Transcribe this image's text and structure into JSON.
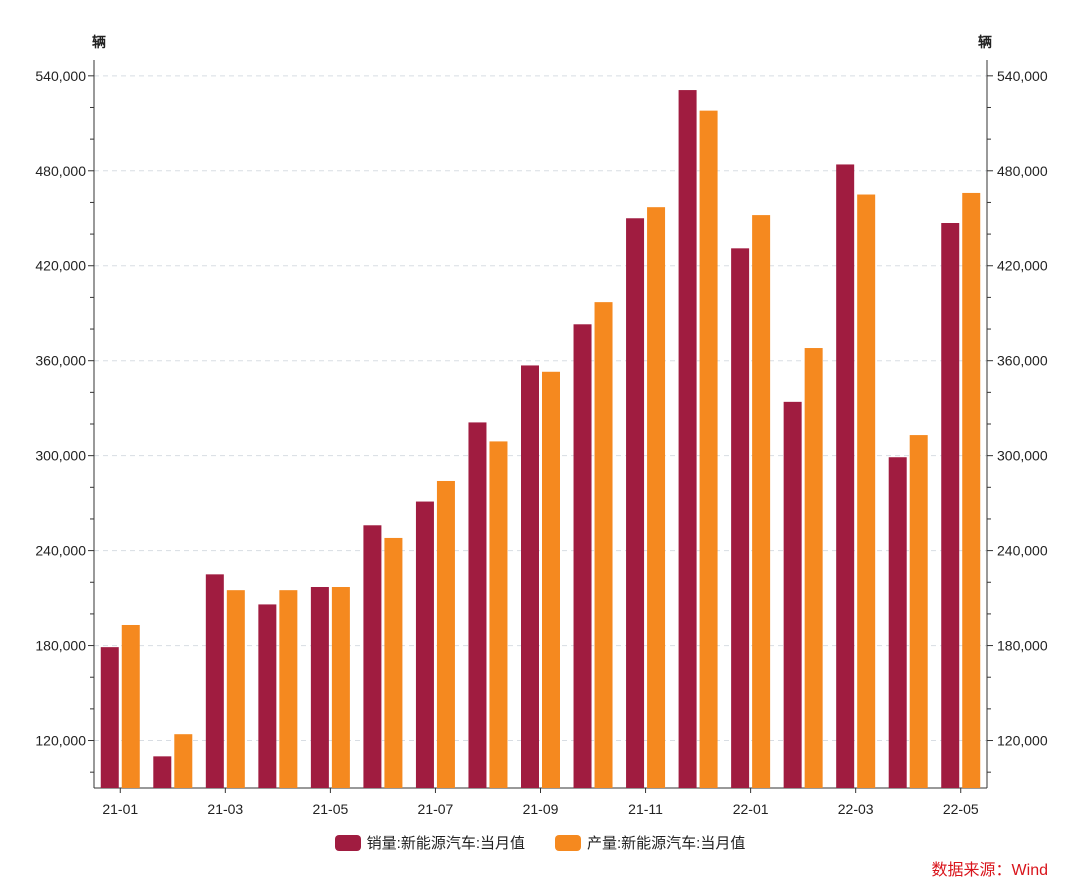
{
  "chart_data": {
    "type": "bar",
    "y_unit_left": "辆",
    "y_unit_right": "辆",
    "ylim": [
      90000,
      550000
    ],
    "yticks": [
      120000,
      180000,
      240000,
      300000,
      360000,
      420000,
      480000,
      540000
    ],
    "ytick_labels": [
      "120,000",
      "180,000",
      "240,000",
      "300,000",
      "360,000",
      "420,000",
      "480,000",
      "540,000"
    ],
    "categories": [
      "21-01",
      "21-02",
      "21-03",
      "21-04",
      "21-05",
      "21-06",
      "21-07",
      "21-08",
      "21-09",
      "21-10",
      "21-11",
      "21-12",
      "22-01",
      "22-02",
      "22-03",
      "22-04",
      "22-05"
    ],
    "xtick_labels": [
      {
        "index": 0,
        "label": "21-01"
      },
      {
        "index": 2,
        "label": "21-03"
      },
      {
        "index": 4,
        "label": "21-05"
      },
      {
        "index": 6,
        "label": "21-07"
      },
      {
        "index": 8,
        "label": "21-09"
      },
      {
        "index": 10,
        "label": "21-11"
      },
      {
        "index": 12,
        "label": "22-01"
      },
      {
        "index": 14,
        "label": "22-03"
      },
      {
        "index": 16,
        "label": "22-05"
      }
    ],
    "series": [
      {
        "name": "销量:新能源汽车:当月值",
        "color": "#a01c40",
        "values": [
          179000,
          110000,
          225000,
          206000,
          217000,
          256000,
          271000,
          321000,
          357000,
          383000,
          450000,
          531000,
          431000,
          334000,
          484000,
          299000,
          447000
        ]
      },
      {
        "name": "产量:新能源汽车:当月值",
        "color": "#f5891f",
        "values": [
          193000,
          124000,
          215000,
          215000,
          217000,
          248000,
          284000,
          309000,
          353000,
          397000,
          457000,
          518000,
          452000,
          368000,
          465000,
          313000,
          466000
        ]
      }
    ],
    "grid": true,
    "legend_position": "bottom-center"
  },
  "source_text": "数据来源：Wind"
}
